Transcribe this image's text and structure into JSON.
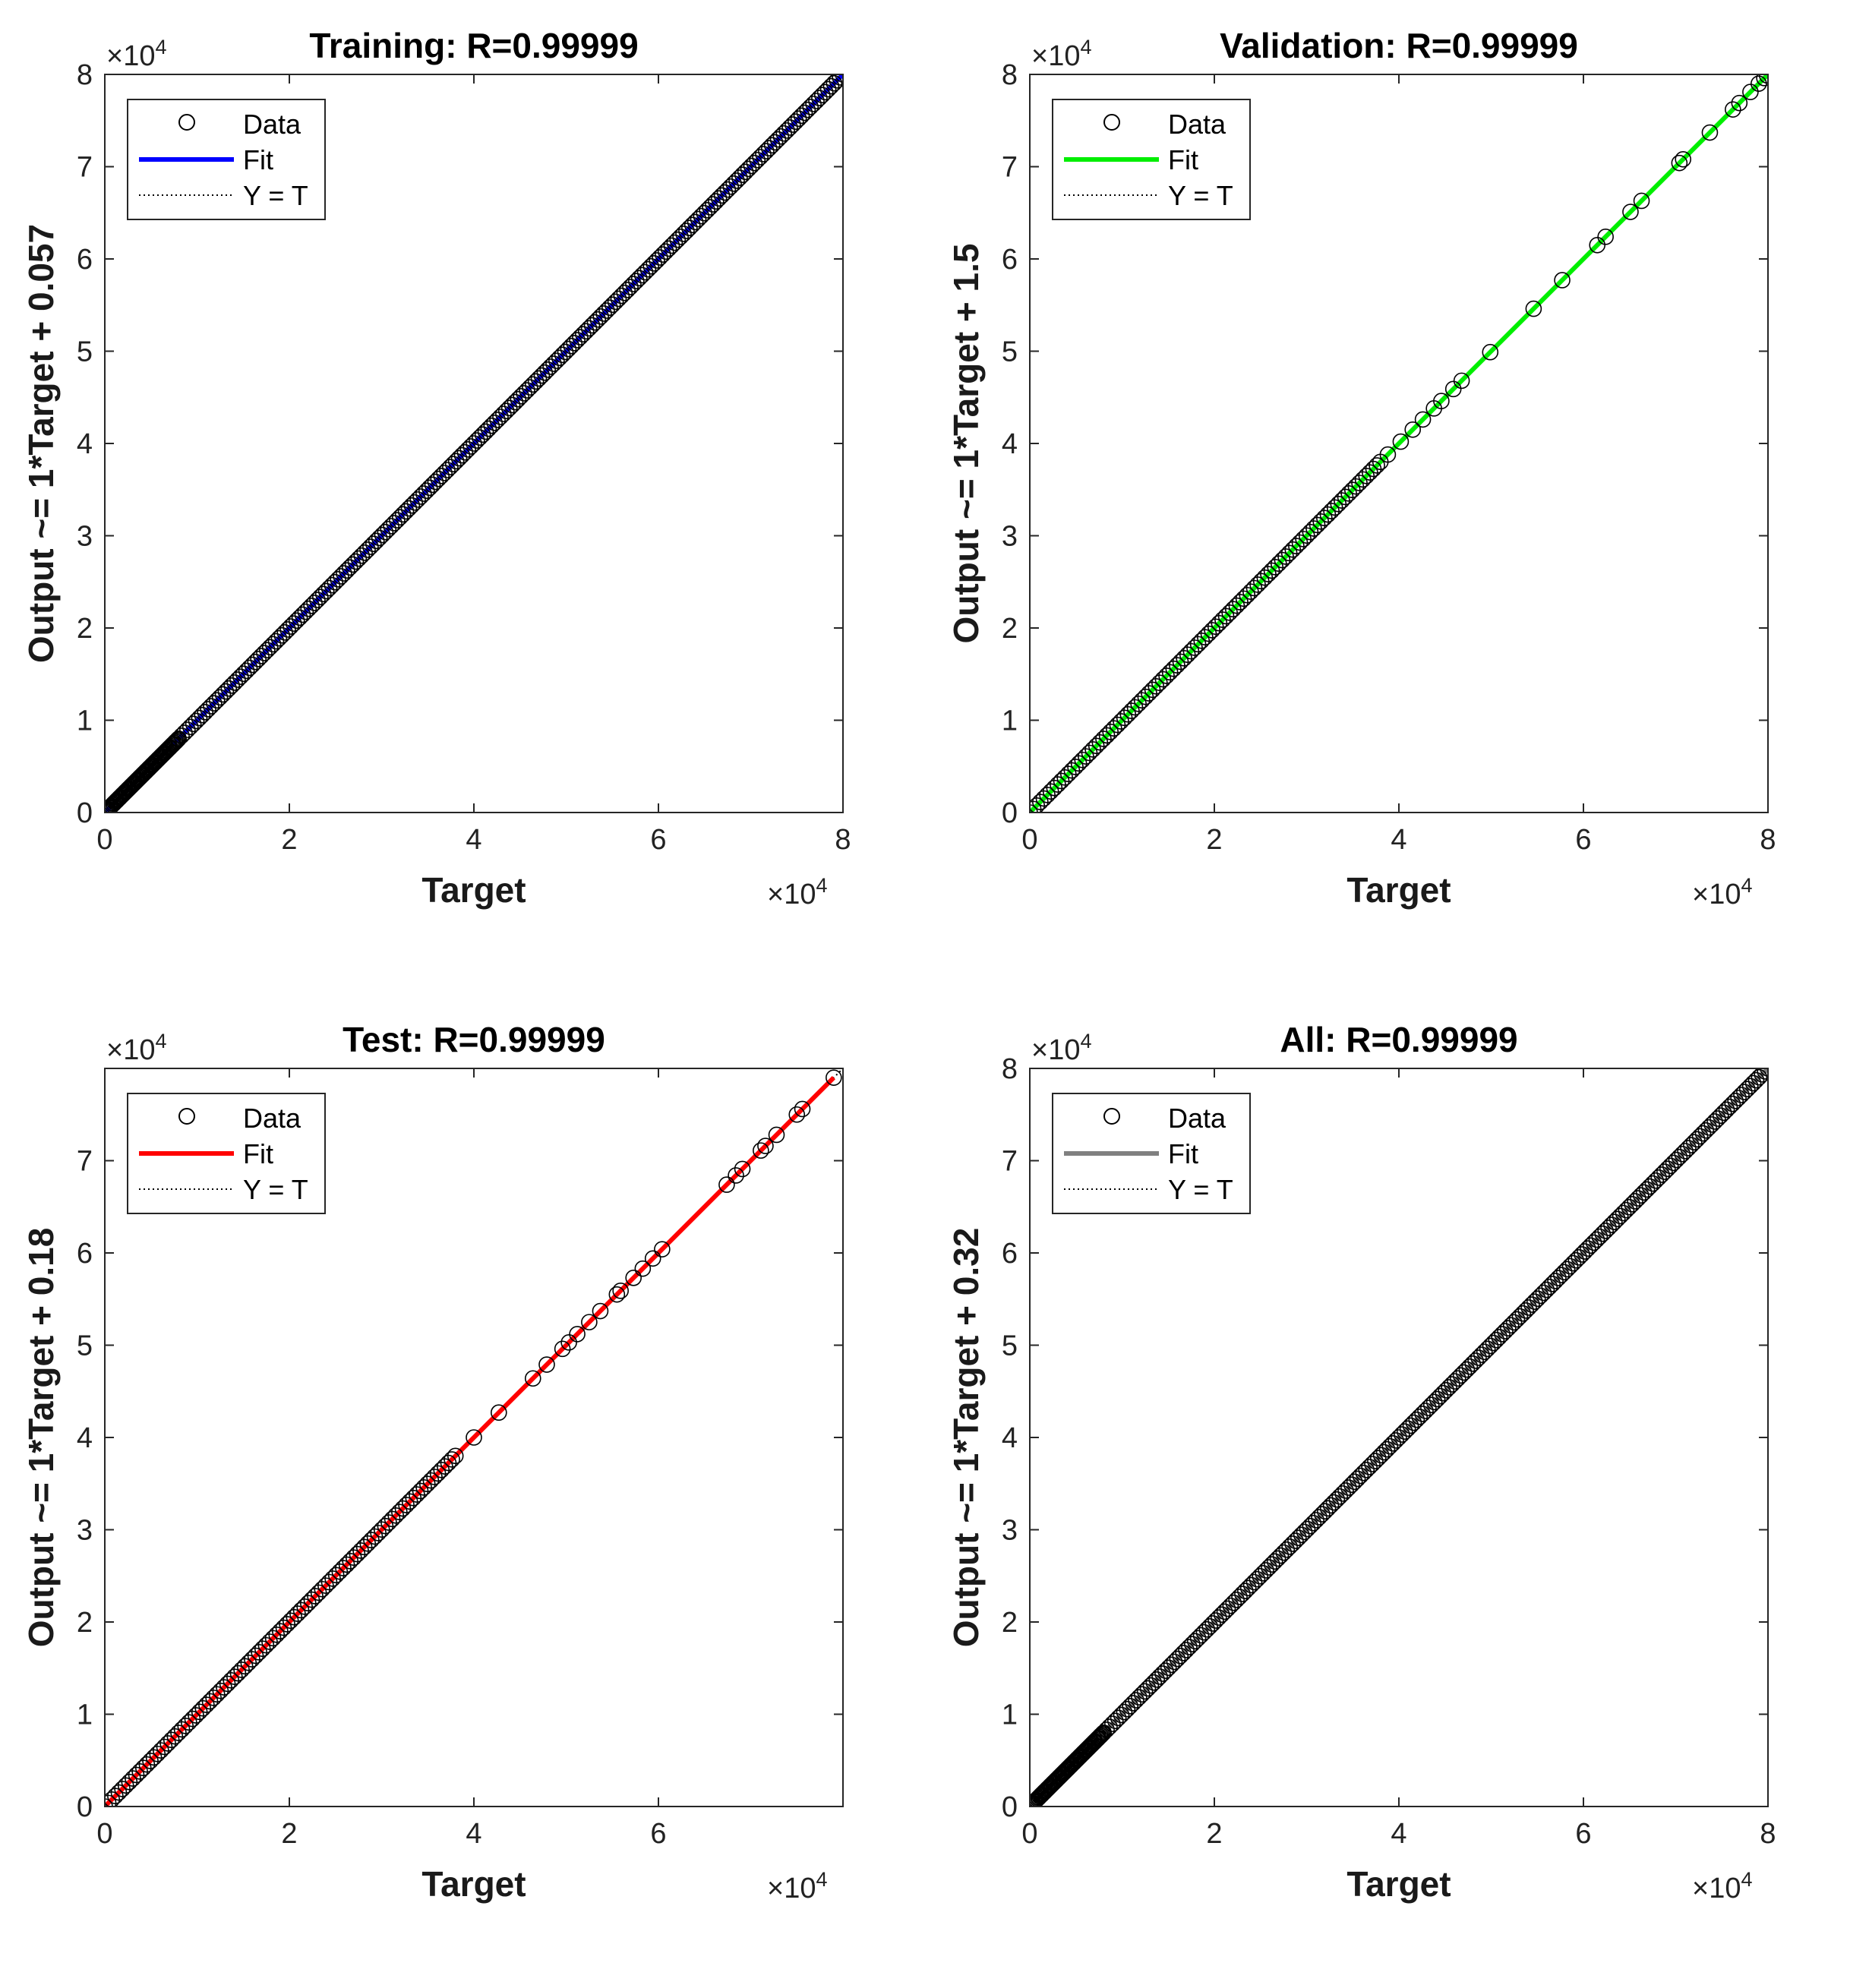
{
  "chart_data": [
    {
      "type": "scatter",
      "id": "training",
      "title": "Training: R=0.99999",
      "xlabel": "Target",
      "ylabel": "Output ~= 1*Target + 0.057",
      "xlim": [
        0,
        80000
      ],
      "ylim": [
        0,
        80000
      ],
      "xticks": [
        0,
        20000,
        40000,
        60000,
        80000
      ],
      "yticks": [
        0,
        10000,
        20000,
        30000,
        40000,
        50000,
        60000,
        70000,
        80000
      ],
      "xtick_labels": [
        "0",
        "2",
        "4",
        "6",
        "8"
      ],
      "ytick_labels": [
        "0",
        "1",
        "2",
        "3",
        "4",
        "5",
        "6",
        "7",
        "8"
      ],
      "x_exponent_label": "×10",
      "y_exponent_label": "×10",
      "exponent_power": "4",
      "fit": {
        "slope": 1,
        "intercept": 0.057,
        "color": "#0000ff"
      },
      "legend": {
        "position": "top-left",
        "entries": [
          "Data",
          "Fit",
          "Y = T"
        ]
      },
      "density": "dense",
      "data_range": [
        0,
        80000
      ]
    },
    {
      "type": "scatter",
      "id": "validation",
      "title": "Validation: R=0.99999",
      "xlabel": "Target",
      "ylabel": "Output ~= 1*Target + 1.5",
      "xlim": [
        0,
        80000
      ],
      "ylim": [
        0,
        80000
      ],
      "xticks": [
        0,
        20000,
        40000,
        60000,
        80000
      ],
      "yticks": [
        0,
        10000,
        20000,
        30000,
        40000,
        50000,
        60000,
        70000,
        80000
      ],
      "xtick_labels": [
        "0",
        "2",
        "4",
        "6",
        "8"
      ],
      "ytick_labels": [
        "0",
        "1",
        "2",
        "3",
        "4",
        "5",
        "6",
        "7",
        "8"
      ],
      "x_exponent_label": "×10",
      "y_exponent_label": "×10",
      "exponent_power": "4",
      "fit": {
        "slope": 1,
        "intercept": 1.5,
        "color": "#00ee00"
      },
      "legend": {
        "position": "top-left",
        "entries": [
          "Data",
          "Fit",
          "Y = T"
        ]
      },
      "density": "sparse-high",
      "data_range": [
        0,
        80000
      ],
      "sparse_points": [
        38800,
        40200,
        41500,
        42600,
        43800,
        44600,
        45900,
        46800,
        49900,
        54600,
        57700,
        61500,
        62400,
        65100,
        66300,
        70400,
        70800,
        73700,
        76200,
        76900,
        78100,
        79000,
        79600,
        79900
      ]
    },
    {
      "type": "scatter",
      "id": "test",
      "title": "Test: R=0.99999",
      "xlabel": "Target",
      "ylabel": "Output ~= 1*Target + 0.18",
      "xlim": [
        0,
        80000
      ],
      "ylim": [
        0,
        80000
      ],
      "xticks": [
        0,
        20000,
        40000,
        60000
      ],
      "yticks": [
        0,
        10000,
        20000,
        30000,
        40000,
        50000,
        60000,
        70000
      ],
      "xtick_labels": [
        "0",
        "2",
        "4",
        "6"
      ],
      "ytick_labels": [
        "0",
        "1",
        "2",
        "3",
        "4",
        "5",
        "6",
        "7"
      ],
      "x_exponent_label": "×10",
      "y_exponent_label": "×10",
      "exponent_power": "4",
      "fit": {
        "slope": 1,
        "intercept": 0.18,
        "color": "#ff0000"
      },
      "legend": {
        "position": "top-left",
        "entries": [
          "Data",
          "Fit",
          "Y = T"
        ]
      },
      "density": "sparse-high",
      "data_range": [
        0,
        79000
      ],
      "sparse_points": [
        40000,
        42700,
        46400,
        47900,
        49600,
        50300,
        51200,
        52500,
        53700,
        55500,
        55900,
        57300,
        58300,
        59400,
        60400,
        67400,
        68400,
        69100,
        71100,
        71600,
        72800,
        75000,
        75600,
        79000
      ]
    },
    {
      "type": "scatter",
      "id": "all",
      "title": "All: R=0.99999",
      "xlabel": "Target",
      "ylabel": "Output ~= 1*Target + 0.32",
      "xlim": [
        0,
        80000
      ],
      "ylim": [
        0,
        80000
      ],
      "xticks": [
        0,
        20000,
        40000,
        60000,
        80000
      ],
      "yticks": [
        0,
        10000,
        20000,
        30000,
        40000,
        50000,
        60000,
        70000,
        80000
      ],
      "xtick_labels": [
        "0",
        "2",
        "4",
        "6",
        "8"
      ],
      "ytick_labels": [
        "0",
        "1",
        "2",
        "3",
        "4",
        "5",
        "6",
        "7",
        "8"
      ],
      "x_exponent_label": "×10",
      "y_exponent_label": "×10",
      "exponent_power": "4",
      "fit": {
        "slope": 1,
        "intercept": 0.32,
        "color": "#808080"
      },
      "legend": {
        "position": "top-left",
        "entries": [
          "Data",
          "Fit",
          "Y = T"
        ]
      },
      "density": "dense",
      "data_range": [
        0,
        80000
      ]
    }
  ]
}
